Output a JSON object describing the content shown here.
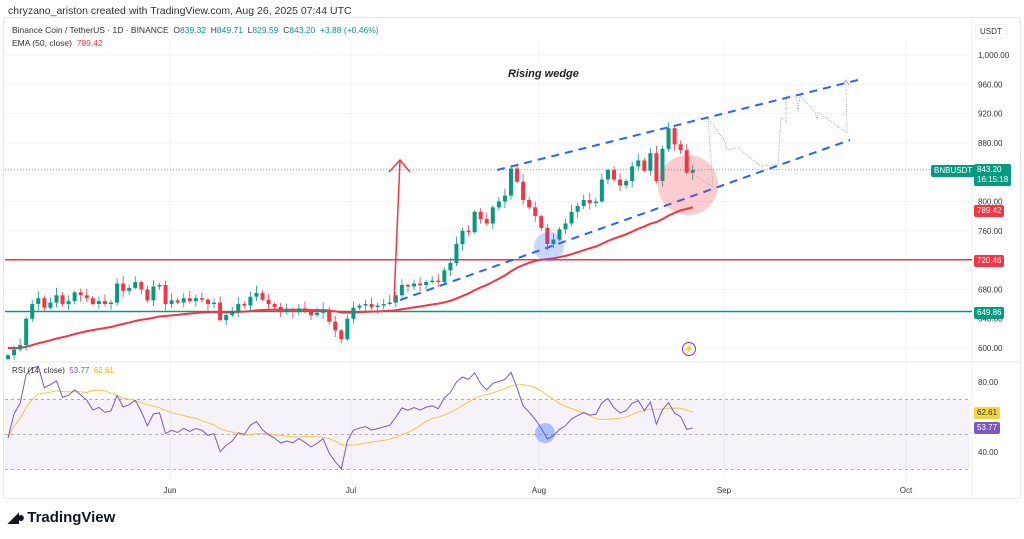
{
  "credit": "chryzano_ariston created with TradingView.com, Aug 26, 2025 07:44 UTC",
  "legend": {
    "symbol": "Binance Coin / TetherUS · 1D · BINANCE",
    "o_label": "O",
    "o": "839.32",
    "h_label": "H",
    "h": "849.71",
    "l_label": "L",
    "l": "829.59",
    "c_label": "C",
    "c": "843.20",
    "change": "+3.88 (+0.46%)",
    "ema_label": "EMA (50, close)",
    "ema_value": "789.42"
  },
  "annotation": "Rising wedge",
  "currency": "USDT",
  "tags": {
    "symbol": "BNBUSDT",
    "price": "843.20",
    "countdown": "16:15:18",
    "ema": "789.42",
    "resistance": "720.46",
    "support": "649.86",
    "rsi_ma": "62.61",
    "rsi": "53.77"
  },
  "rsi_legend": {
    "label": "RSI (14, close)",
    "rsi": "53.77",
    "ma": "62.61"
  },
  "logo": "TradingView",
  "colors": {
    "up": "#089981",
    "down": "#f23645",
    "ema": "#f23645",
    "wedge": "#2962ff",
    "rsi": "#7e57c2",
    "rsi_ma": "#f5c842",
    "support": "#089981",
    "resistance": "#f23645"
  },
  "chart_data": {
    "type": "candlestick",
    "title": "Binance Coin / TetherUS · 1D · BINANCE",
    "ylim": [
      590,
      1010
    ],
    "y_ticks": [
      "1,000.00",
      "960.00",
      "920.00",
      "880.00",
      "800.00",
      "760.00",
      "680.00",
      "640.00",
      "600.00"
    ],
    "y_tick_values": [
      1000,
      960,
      920,
      880,
      800,
      760,
      680,
      640,
      600
    ],
    "x_ticks": [
      "Jun",
      "Jul",
      "Aug",
      "Sep",
      "Oct"
    ],
    "grid": true,
    "months": [
      {
        "month": "May",
        "first_day": 5,
        "close": [
          590,
          598,
          604,
          640,
          660,
          668,
          655,
          662,
          672,
          660,
          664,
          676,
          672,
          668,
          660,
          664,
          660,
          662,
          688,
          678,
          682,
          690,
          680,
          665,
          684,
          686,
          660
        ]
      },
      {
        "month": "Jun",
        "first_day": 1,
        "close": [
          665,
          662,
          668,
          664,
          668,
          666,
          660,
          662,
          638,
          645,
          650,
          660,
          658,
          670,
          675,
          666,
          660,
          656,
          650,
          652,
          650,
          654,
          650,
          645,
          648,
          652,
          636,
          624,
          612,
          640
        ]
      },
      {
        "month": "Jul",
        "first_day": 1,
        "close": [
          655,
          658,
          660,
          656,
          658,
          660,
          662,
          672,
          686,
          684,
          688,
          686,
          690,
          692,
          690,
          706,
          716,
          742,
          760,
          758,
          786,
          776,
          770,
          792,
          800,
          808,
          845,
          827,
          802,
          792,
          780
        ]
      },
      {
        "month": "Aug",
        "first_day": 1,
        "close": [
          764,
          742,
          748,
          762,
          770,
          786,
          794,
          802,
          798,
          800,
          830,
          843,
          830,
          822,
          828,
          848,
          856,
          842,
          866,
          828,
          872,
          900,
          878,
          870,
          839.32,
          843.2
        ]
      }
    ],
    "last_candle": {
      "open": 839.32,
      "high": 849.71,
      "low": 829.59,
      "close": 843.2
    },
    "indicators": {
      "ema_period": 50,
      "ema_last": 789.42,
      "rsi_period": 14,
      "rsi_last": 53.77,
      "rsi_ma_last": 62.61,
      "rsi_ticks": [
        "80.00",
        "40.00"
      ],
      "rsi_tick_values": [
        80,
        40
      ],
      "rsi_bands": [
        70,
        50,
        30
      ]
    },
    "levels": [
      {
        "name": "resistance",
        "value": 720.46
      },
      {
        "name": "support",
        "value": 649.86
      }
    ]
  }
}
